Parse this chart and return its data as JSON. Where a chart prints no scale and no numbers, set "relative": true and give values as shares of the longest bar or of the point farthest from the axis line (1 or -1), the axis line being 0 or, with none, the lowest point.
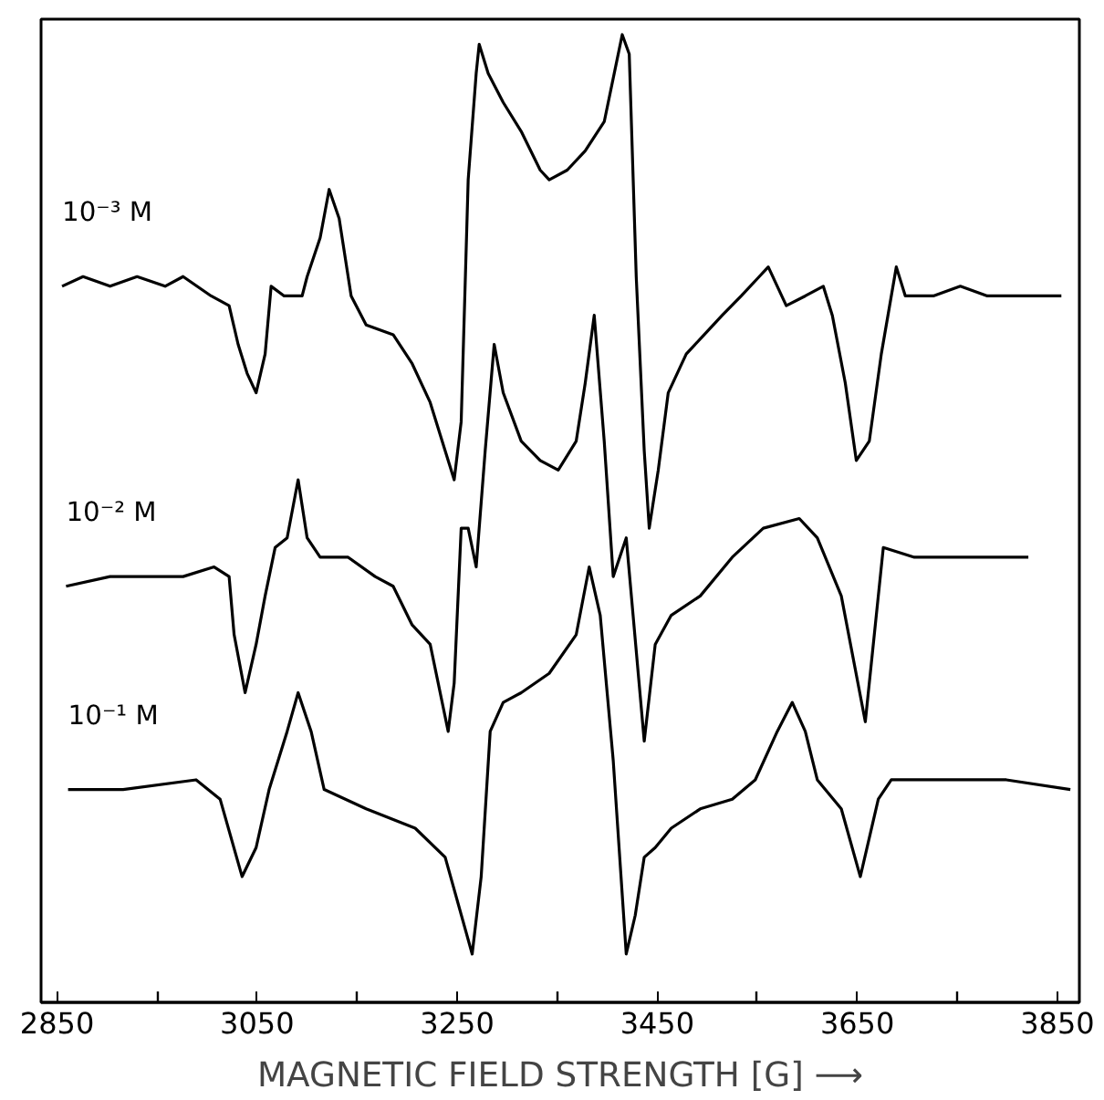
{
  "chart_data": {
    "type": "line",
    "relative": true,
    "xlabel": "MAGNETIC FIELD STRENGTH [G] ⟶",
    "xlim": [
      2834,
      3872
    ],
    "xticks": [
      2850,
      {
        "value": 2950,
        "label": null
      },
      3050,
      {
        "value": 3150,
        "label": null
      },
      3250,
      {
        "value": 3350,
        "label": null
      },
      3450,
      {
        "value": 3550,
        "label": null
      },
      3650,
      {
        "value": 3750,
        "label": null
      },
      3850
    ],
    "grid": false,
    "legend": false,
    "marker": "none",
    "line_style": "solid",
    "series": [
      {
        "name": "10⁻³ M",
        "color": "#000000",
        "x": [
          2855,
          2876,
          2903,
          2930,
          2958,
          2976,
          3004,
          3022,
          3031,
          3040,
          3049,
          3058,
          3064,
          3077,
          3095,
          3100,
          3113,
          3122,
          3132,
          3144,
          3159,
          3186,
          3205,
          3223,
          3238,
          3247,
          3254,
          3261,
          3269,
          3272,
          3281,
          3296,
          3314,
          3333,
          3342,
          3360,
          3378,
          3397,
          3409,
          3415,
          3422,
          3429,
          3437,
          3442,
          3451,
          3461,
          3479,
          3497,
          3515,
          3534,
          3552,
          3561,
          3579,
          3598,
          3616,
          3625,
          3638,
          3649,
          3662,
          3674,
          3689,
          3698,
          3726,
          3753,
          3780,
          3808,
          3854
        ],
        "values": [
          0.74,
          0.75,
          0.74,
          0.75,
          0.74,
          0.75,
          0.73,
          0.72,
          0.68,
          0.65,
          0.63,
          0.67,
          0.74,
          0.73,
          0.73,
          0.75,
          0.79,
          0.84,
          0.81,
          0.73,
          0.7,
          0.69,
          0.66,
          0.62,
          0.57,
          0.54,
          0.6,
          0.85,
          0.96,
          0.99,
          0.96,
          0.93,
          0.9,
          0.86,
          0.85,
          0.86,
          0.88,
          0.91,
          0.97,
          1.0,
          0.98,
          0.75,
          0.57,
          0.49,
          0.55,
          0.63,
          0.67,
          0.69,
          0.71,
          0.73,
          0.75,
          0.76,
          0.72,
          0.73,
          0.74,
          0.71,
          0.64,
          0.56,
          0.58,
          0.67,
          0.76,
          0.73,
          0.73,
          0.74,
          0.73,
          0.73,
          0.73
        ]
      },
      {
        "name": "10⁻² M",
        "color": "#000000",
        "x": [
          2859,
          2903,
          2940,
          2976,
          3007,
          3022,
          3027,
          3038,
          3049,
          3058,
          3068,
          3080,
          3091,
          3100,
          3113,
          3141,
          3168,
          3186,
          3205,
          3223,
          3241,
          3247,
          3254,
          3261,
          3269,
          3278,
          3287,
          3296,
          3314,
          3333,
          3351,
          3369,
          3378,
          3387,
          3397,
          3406,
          3419,
          3437,
          3448,
          3464,
          3493,
          3525,
          3556,
          3592,
          3610,
          3634,
          3658,
          3676,
          3707,
          3768,
          3821
        ],
        "values": [
          0.43,
          0.44,
          0.44,
          0.44,
          0.45,
          0.44,
          0.38,
          0.32,
          0.37,
          0.42,
          0.47,
          0.48,
          0.54,
          0.48,
          0.46,
          0.46,
          0.44,
          0.43,
          0.39,
          0.37,
          0.28,
          0.33,
          0.49,
          0.49,
          0.45,
          0.57,
          0.68,
          0.63,
          0.58,
          0.56,
          0.55,
          0.58,
          0.64,
          0.71,
          0.58,
          0.44,
          0.48,
          0.27,
          0.37,
          0.4,
          0.42,
          0.46,
          0.49,
          0.5,
          0.48,
          0.42,
          0.29,
          0.47,
          0.46,
          0.46,
          0.46
        ]
      },
      {
        "name": "10⁻¹ M",
        "color": "#000000",
        "x": [
          2861,
          2916,
          2989,
          3013,
          3035,
          3049,
          3062,
          3080,
          3091,
          3104,
          3117,
          3159,
          3208,
          3238,
          3265,
          3274,
          3283,
          3296,
          3314,
          3342,
          3369,
          3382,
          3393,
          3406,
          3419,
          3428,
          3437,
          3448,
          3464,
          3493,
          3525,
          3548,
          3570,
          3585,
          3598,
          3610,
          3634,
          3653,
          3671,
          3684,
          3744,
          3799,
          3863
        ],
        "values": [
          0.22,
          0.22,
          0.23,
          0.21,
          0.13,
          0.16,
          0.22,
          0.28,
          0.32,
          0.28,
          0.22,
          0.2,
          0.18,
          0.15,
          0.05,
          0.13,
          0.28,
          0.31,
          0.32,
          0.34,
          0.38,
          0.45,
          0.4,
          0.25,
          0.05,
          0.09,
          0.15,
          0.16,
          0.18,
          0.2,
          0.21,
          0.23,
          0.28,
          0.31,
          0.28,
          0.23,
          0.2,
          0.13,
          0.21,
          0.23,
          0.23,
          0.23,
          0.22
        ]
      }
    ]
  }
}
